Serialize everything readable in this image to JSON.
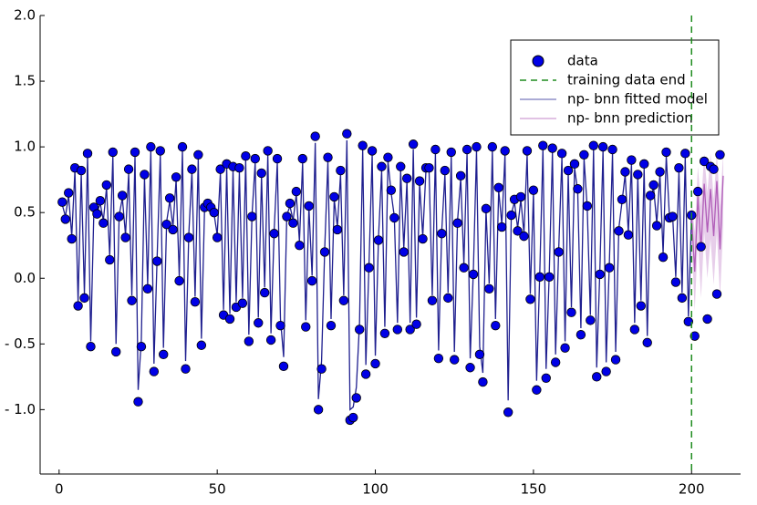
{
  "chart_data": {
    "type": "scatter-line",
    "xlim": [
      -6,
      215.5
    ],
    "ylim": [
      -1.49,
      2.0
    ],
    "xticks": [
      0,
      50,
      100,
      150,
      200
    ],
    "yticks": [
      {
        "value": -1.0,
        "label": "- 1.0"
      },
      {
        "value": -0.5,
        "label": "- 0.5"
      },
      {
        "value": 0.0,
        "label": "0.0"
      },
      0.5,
      {
        "value": 1.0,
        "label": "1.0"
      },
      1.5,
      {
        "value": 2.0,
        "label": "2.0"
      }
    ],
    "legend": "upper right",
    "vline": {
      "name": "training data end",
      "x": 200,
      "color": "#1e8c1e"
    },
    "series": [
      {
        "name": "data",
        "kind": "scatter",
        "color": "#0000e6",
        "x": [
          1,
          2,
          3,
          4,
          5,
          6,
          7,
          8,
          9,
          10,
          11,
          12,
          13,
          14,
          15,
          16,
          17,
          18,
          19,
          20,
          21,
          22,
          23,
          24,
          25,
          26,
          27,
          28,
          29,
          30,
          31,
          32,
          33,
          34,
          35,
          36,
          37,
          38,
          39,
          40,
          41,
          42,
          43,
          44,
          45,
          46,
          47,
          48,
          49,
          50,
          51,
          52,
          53,
          54,
          55,
          56,
          57,
          58,
          59,
          60,
          61,
          62,
          63,
          64,
          65,
          66,
          67,
          68,
          69,
          70,
          71,
          72,
          73,
          74,
          75,
          76,
          77,
          78,
          79,
          80,
          81,
          82,
          83,
          84,
          85,
          86,
          87,
          88,
          89,
          90,
          91,
          92,
          93,
          94,
          95,
          96,
          97,
          98,
          99,
          100,
          101,
          102,
          103,
          104,
          105,
          106,
          107,
          108,
          109,
          110,
          111,
          112,
          113,
          114,
          115,
          116,
          117,
          118,
          119,
          120,
          121,
          122,
          123,
          124,
          125,
          126,
          127,
          128,
          129,
          130,
          131,
          132,
          133,
          134,
          135,
          136,
          137,
          138,
          139,
          140,
          141,
          142,
          143,
          144,
          145,
          146,
          147,
          148,
          149,
          150,
          151,
          152,
          153,
          154,
          155,
          156,
          157,
          158,
          159,
          160,
          161,
          162,
          163,
          164,
          165,
          166,
          167,
          168,
          169,
          170,
          171,
          172,
          173,
          174,
          175,
          176,
          177,
          178,
          179,
          180,
          181,
          182,
          183,
          184,
          185,
          186,
          187,
          188,
          189,
          190,
          191,
          192,
          193,
          194,
          195,
          196,
          197,
          198,
          199,
          200,
          201,
          202,
          203,
          204,
          205,
          206,
          207,
          208,
          209
        ],
        "values": [
          0.58,
          0.45,
          0.65,
          0.3,
          0.84,
          -0.21,
          0.82,
          -0.15,
          0.95,
          -0.52,
          0.54,
          0.49,
          0.59,
          0.42,
          0.71,
          0.14,
          0.96,
          -0.56,
          0.47,
          0.63,
          0.31,
          0.83,
          -0.17,
          0.96,
          -0.94,
          -0.52,
          0.79,
          -0.08,
          1.0,
          -0.71,
          0.13,
          0.97,
          -0.58,
          0.41,
          0.61,
          0.37,
          0.77,
          -0.02,
          1.0,
          -0.69,
          0.31,
          0.83,
          -0.18,
          0.94,
          -0.51,
          0.54,
          0.57,
          0.54,
          0.5,
          0.31,
          0.83,
          -0.28,
          0.87,
          -0.31,
          0.85,
          -0.22,
          0.84,
          -0.19,
          0.93,
          -0.48,
          0.47,
          0.91,
          -0.34,
          0.8,
          -0.11,
          0.97,
          -0.47,
          0.34,
          0.91,
          -0.36,
          -0.67,
          0.47,
          0.57,
          0.42,
          0.66,
          0.25,
          0.91,
          -0.37,
          0.55,
          -0.02,
          1.08,
          -1.0,
          -0.69,
          0.2,
          0.92,
          -0.36,
          0.62,
          0.37,
          0.82,
          -0.17,
          1.1,
          -1.08,
          -1.06,
          -0.91,
          -0.39,
          1.01,
          -0.73,
          0.08,
          0.97,
          -0.65,
          0.29,
          0.85,
          -0.42,
          0.92,
          0.67,
          0.46,
          -0.39,
          0.85,
          0.2,
          0.76,
          -0.39,
          1.02,
          -0.35,
          0.74,
          0.3,
          0.84,
          0.84,
          -0.17,
          0.98,
          -0.61,
          0.34,
          0.82,
          -0.15,
          0.96,
          -0.62,
          0.42,
          0.78,
          0.08,
          0.98,
          -0.68,
          0.03,
          1.0,
          -0.58,
          -0.79,
          0.53,
          -0.08,
          1.0,
          -0.36,
          0.69,
          0.39,
          0.97,
          -1.02,
          0.48,
          0.6,
          0.36,
          0.62,
          0.32,
          0.97,
          -0.16,
          0.67,
          -0.85,
          0.01,
          1.01,
          -0.76,
          0.01,
          0.99,
          -0.64,
          0.2,
          0.95,
          -0.53,
          0.82,
          -0.26,
          0.87,
          0.68,
          -0.43,
          0.94,
          0.55,
          -0.32,
          1.01,
          -0.75,
          0.03,
          1.0,
          -0.71,
          0.08,
          0.98,
          -0.62,
          0.36,
          0.6,
          0.81,
          0.33,
          0.9,
          -0.39,
          0.79,
          -0.21,
          0.87,
          -0.49,
          0.63,
          0.71,
          0.4,
          0.81,
          0.16,
          0.96,
          0.46,
          0.47,
          -0.03,
          0.84,
          -0.15,
          0.95,
          -0.33,
          0.48,
          -0.44,
          0.66,
          0.24,
          0.89,
          -0.31,
          0.85,
          0.83,
          -0.12,
          0.94
        ]
      },
      {
        "name": "np- bnn fitted model",
        "kind": "line",
        "color": "#1f1f8f",
        "x": [
          1,
          2,
          3,
          4,
          5,
          6,
          7,
          8,
          9,
          10,
          11,
          12,
          13,
          14,
          15,
          16,
          17,
          18,
          19,
          20,
          21,
          22,
          23,
          24,
          25,
          26,
          27,
          28,
          29,
          30,
          31,
          32,
          33,
          34,
          35,
          36,
          37,
          38,
          39,
          40,
          41,
          42,
          43,
          44,
          45,
          46,
          47,
          48,
          49,
          50,
          51,
          52,
          53,
          54,
          55,
          56,
          57,
          58,
          59,
          60,
          61,
          62,
          63,
          64,
          65,
          66,
          67,
          68,
          69,
          70,
          71,
          72,
          73,
          74,
          75,
          76,
          77,
          78,
          79,
          80,
          81,
          82,
          83,
          84,
          85,
          86,
          87,
          88,
          89,
          90,
          91,
          92,
          93,
          94,
          95,
          96,
          97,
          98,
          99,
          100,
          101,
          102,
          103,
          104,
          105,
          106,
          107,
          108,
          109,
          110,
          111,
          112,
          113,
          114,
          115,
          116,
          117,
          118,
          119,
          120,
          121,
          122,
          123,
          124,
          125,
          126,
          127,
          128,
          129,
          130,
          131,
          132,
          133,
          134,
          135,
          136,
          137,
          138,
          139,
          140,
          141,
          142,
          143,
          144,
          145,
          146,
          147,
          148,
          149,
          150,
          151,
          152,
          153,
          154,
          155,
          156,
          157,
          158,
          159,
          160,
          161,
          162,
          163,
          164,
          165,
          166,
          167,
          168,
          169,
          170,
          171,
          172,
          173,
          174,
          175,
          176,
          177,
          178,
          179,
          180,
          181,
          182,
          183,
          184,
          185,
          186,
          187,
          188,
          189,
          190,
          191,
          192,
          193,
          194,
          195,
          196,
          197,
          198,
          199,
          200
        ],
        "values": [
          0.56,
          0.47,
          0.63,
          0.32,
          0.82,
          -0.18,
          0.8,
          -0.12,
          0.93,
          -0.48,
          0.52,
          0.5,
          0.57,
          0.44,
          0.69,
          0.17,
          0.93,
          -0.5,
          0.48,
          0.61,
          0.33,
          0.8,
          -0.13,
          0.93,
          -0.85,
          -0.47,
          0.77,
          -0.05,
          0.97,
          -0.65,
          0.16,
          0.94,
          -0.53,
          0.43,
          0.59,
          0.39,
          0.75,
          0.01,
          0.97,
          -0.63,
          0.33,
          0.81,
          -0.14,
          0.91,
          -0.46,
          0.53,
          0.55,
          0.53,
          0.49,
          0.33,
          0.8,
          -0.24,
          0.84,
          -0.27,
          0.82,
          -0.18,
          0.81,
          -0.15,
          0.9,
          -0.43,
          0.48,
          0.88,
          -0.3,
          0.78,
          -0.07,
          0.94,
          -0.42,
          0.36,
          0.88,
          -0.31,
          -0.6,
          0.48,
          0.55,
          0.44,
          0.64,
          0.28,
          0.88,
          -0.32,
          0.54,
          0.02,
          1.03,
          -0.92,
          -0.63,
          0.23,
          0.89,
          -0.31,
          0.6,
          0.39,
          0.79,
          -0.13,
          1.05,
          -1.0,
          -0.98,
          -0.83,
          -0.34,
          0.98,
          -0.66,
          0.11,
          0.94,
          -0.59,
          0.31,
          0.82,
          -0.37,
          0.89,
          0.65,
          0.47,
          -0.34,
          0.82,
          0.23,
          0.74,
          -0.34,
          0.98,
          -0.3,
          0.72,
          0.32,
          0.82,
          0.81,
          -0.13,
          0.95,
          -0.55,
          0.36,
          0.79,
          -0.11,
          0.93,
          -0.56,
          0.44,
          0.76,
          0.11,
          0.95,
          -0.61,
          0.06,
          0.97,
          -0.52,
          -0.72,
          0.52,
          -0.04,
          0.97,
          -0.31,
          0.67,
          0.41,
          0.94,
          -0.93,
          0.49,
          0.58,
          0.38,
          0.6,
          0.34,
          0.94,
          -0.12,
          0.65,
          -0.78,
          0.04,
          0.98,
          -0.69,
          0.04,
          0.96,
          -0.58,
          0.23,
          0.92,
          -0.48,
          0.8,
          -0.22,
          0.84,
          0.66,
          -0.38,
          0.91,
          0.54,
          -0.28,
          0.98,
          -0.68,
          0.06,
          0.97,
          -0.64,
          0.11,
          0.95,
          -0.56,
          0.38,
          0.58,
          0.79,
          0.35,
          0.87,
          -0.34,
          0.77,
          -0.17,
          0.84,
          -0.44,
          0.61,
          0.69,
          0.42,
          0.79,
          0.19,
          0.93,
          0.47,
          0.48,
          0.01,
          0.81,
          -0.11,
          0.92,
          -0.29,
          0.47
        ]
      },
      {
        "name": "np- bnn prediction",
        "kind": "band",
        "color": "#b05cb8",
        "x": [
          200,
          201,
          202,
          203,
          204,
          205,
          206,
          207,
          208,
          209,
          210
        ],
        "values": [
          0.47,
          0.05,
          0.62,
          0.22,
          0.72,
          0.35,
          0.68,
          0.32,
          0.74,
          0.22,
          0.78
        ],
        "lower": [
          0.3,
          -0.25,
          0.3,
          -0.15,
          0.35,
          0.0,
          0.3,
          -0.05,
          0.35,
          -0.15,
          0.4
        ],
        "upper": [
          0.6,
          0.35,
          0.85,
          0.55,
          0.95,
          0.65,
          0.95,
          0.6,
          0.95,
          0.55,
          0.95
        ]
      }
    ]
  }
}
